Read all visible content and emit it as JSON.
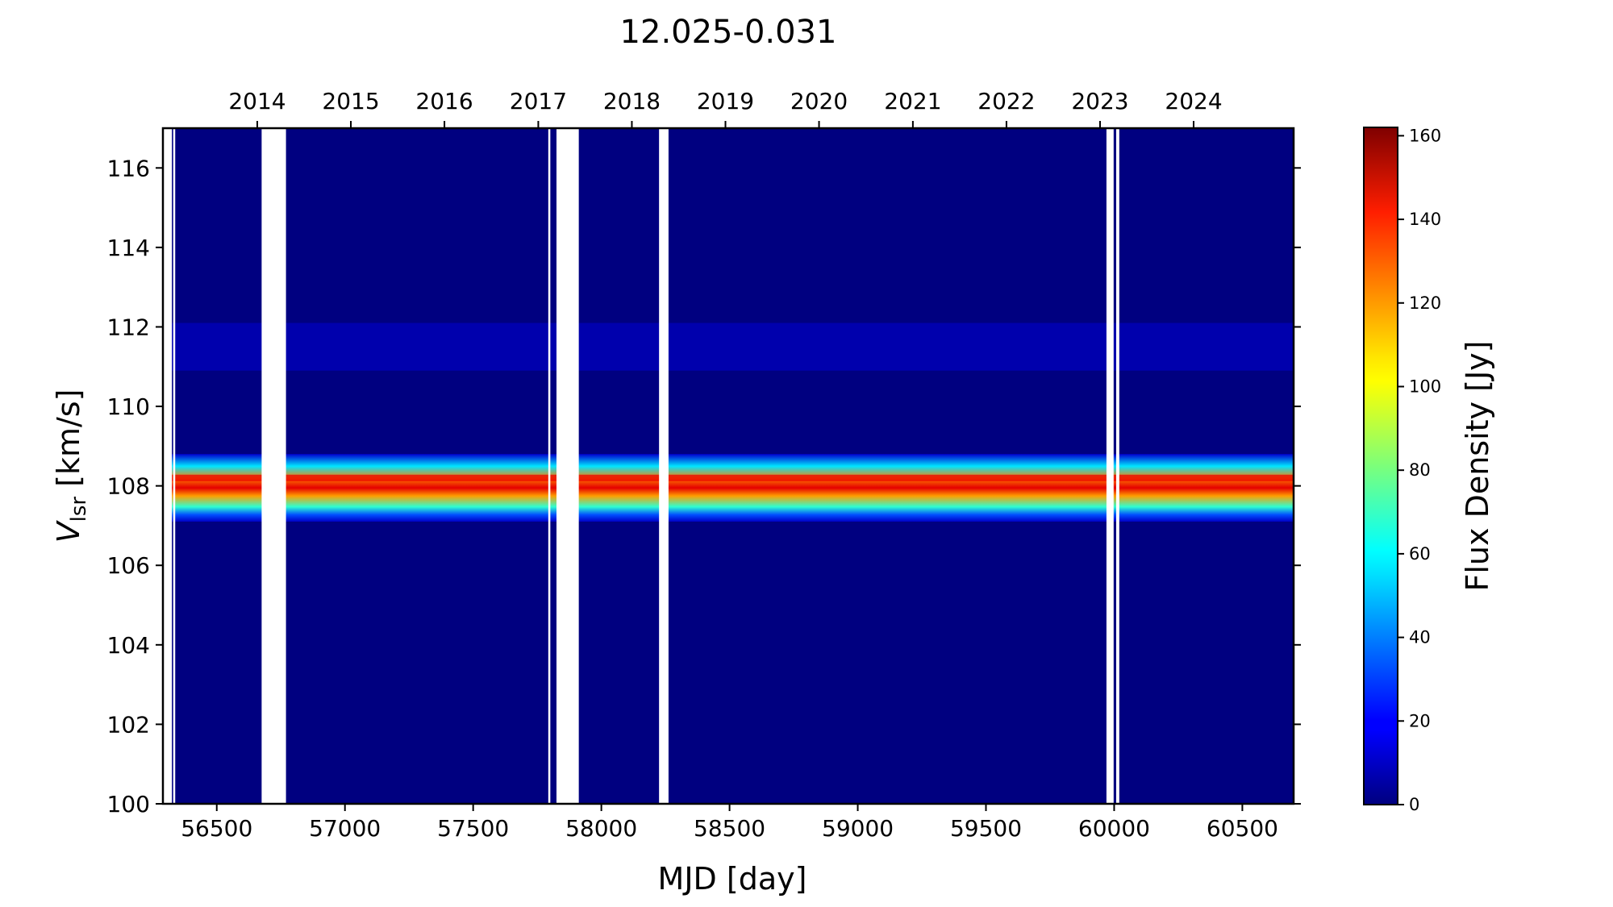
{
  "chart_data": {
    "type": "heatmap",
    "title": "12.025-0.031",
    "xlabel": "MJD [day]",
    "ylabel_main": "V",
    "ylabel_sub": "lsr",
    "ylabel_rest": " [km/s]",
    "xlim": [
      56290,
      60700
    ],
    "ylim": [
      100,
      117
    ],
    "x_ticks": [
      "56500",
      "57000",
      "57500",
      "58000",
      "58500",
      "59000",
      "59500",
      "60000",
      "60500"
    ],
    "y_ticks": [
      "100",
      "102",
      "104",
      "106",
      "108",
      "110",
      "112",
      "114",
      "116"
    ],
    "top_axis_ticks": [
      {
        "label": "2014",
        "mjd": 56658
      },
      {
        "label": "2015",
        "mjd": 57023
      },
      {
        "label": "2016",
        "mjd": 57388
      },
      {
        "label": "2017",
        "mjd": 57754
      },
      {
        "label": "2018",
        "mjd": 58119
      },
      {
        "label": "2019",
        "mjd": 58484
      },
      {
        "label": "2020",
        "mjd": 58849
      },
      {
        "label": "2021",
        "mjd": 59215
      },
      {
        "label": "2022",
        "mjd": 59580
      },
      {
        "label": "2023",
        "mjd": 59945
      },
      {
        "label": "2024",
        "mjd": 60310
      }
    ],
    "colorbar": {
      "label": "Flux Density [Jy]",
      "range": [
        0,
        162
      ],
      "ticks": [
        "0",
        "20",
        "40",
        "60",
        "80",
        "100",
        "120",
        "140",
        "160"
      ],
      "colormap": "jet"
    },
    "emission_feature": {
      "peak_velocity": 108.2,
      "velocity_extent": [
        107.1,
        108.8
      ],
      "peak_flux": 145,
      "faint_component_velocity": 111.5,
      "faint_component_flux": 12
    },
    "data_gaps_mjd": [
      [
        56290,
        56325
      ],
      [
        56330,
        56338
      ],
      [
        56675,
        56770
      ],
      [
        57793,
        57801
      ],
      [
        57825,
        57912
      ],
      [
        58225,
        58262
      ],
      [
        59970,
        59998
      ],
      [
        60008,
        60020
      ]
    ]
  }
}
